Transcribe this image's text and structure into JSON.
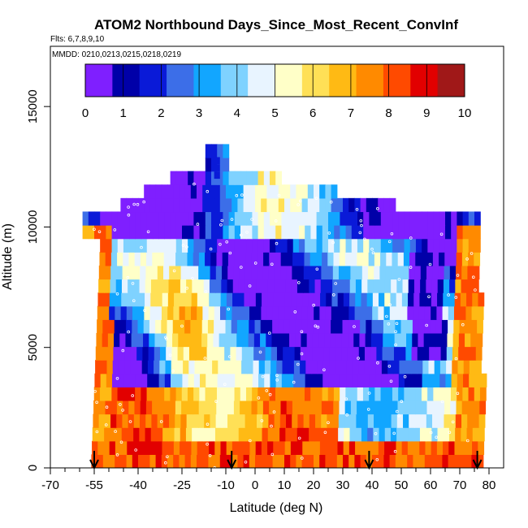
{
  "chart_data": {
    "type": "heatmap",
    "title": "ATOM2 Northbound Days_Since_Most_Recent_ConvInf",
    "subtitle_flights": "Flts: 6,7,8,9,10",
    "subtitle_dates": "MMDD: 0210,0213,0215,0218,0219",
    "xlabel": "Latitude (deg N)",
    "ylabel": "Altitude (m)",
    "xlim": [
      -70,
      85
    ],
    "ylim": [
      0,
      17500
    ],
    "x_tick_labels": [
      "-70",
      "-55",
      "-40",
      "-25",
      "-10",
      "0",
      "10",
      "20",
      "30",
      "40",
      "50",
      "60",
      "70",
      "80"
    ],
    "x_tick_values": [
      -70,
      -55,
      -40,
      -25,
      -10,
      0,
      10,
      20,
      30,
      40,
      50,
      60,
      70,
      80
    ],
    "x_minor_ticks": [
      -65,
      -60,
      -50,
      -45,
      -35,
      -30,
      -20,
      -15,
      -5,
      5,
      15,
      25,
      35,
      45,
      55,
      65,
      75
    ],
    "y_ticks": [
      0,
      5000,
      10000,
      15000
    ],
    "y_tick_labels": [
      "0",
      "5000",
      "10000",
      "15000"
    ],
    "colorbar": {
      "min": 0,
      "max": 10,
      "tick_labels": [
        "0",
        "1",
        "2",
        "3",
        "4",
        "5",
        "6",
        "7",
        "8",
        "9",
        "10"
      ],
      "colors": [
        "#7f1fff",
        "#0000a8",
        "#0a1ad8",
        "#3c6ee8",
        "#12a6ff",
        "#7fd2ff",
        "#e8f4ff",
        "#ffffc8",
        "#ffe056",
        "#ffba14",
        "#ff8a00",
        "#ff4a00",
        "#e20000",
        "#a01818"
      ]
    },
    "vertical_profiles_lat": [
      -55,
      -8,
      39,
      76
    ],
    "grid": false,
    "legend": "colorbar top"
  }
}
